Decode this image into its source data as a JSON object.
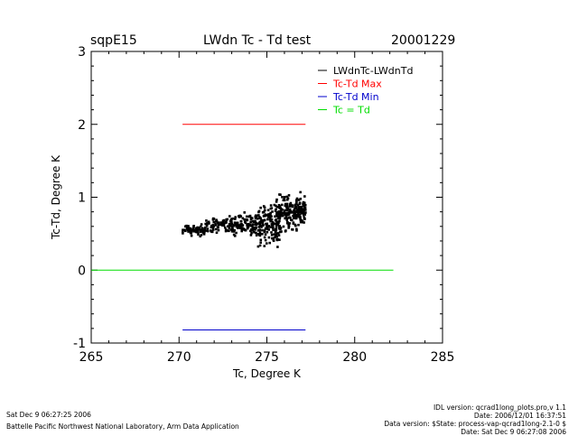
{
  "header": {
    "site": "sqpE15",
    "title": "LWdn Tc - Td test",
    "date": "20001229"
  },
  "footer": {
    "left_date": "Sat Dec  9 06:27:25 2006",
    "left_org": "Battelle Pacific Northwest National Laboratory, Arm Data Application",
    "right_lines": [
      "IDL version: qcrad1long_plots.pro,v 1.1",
      "Date: 2006/12/01 16:37:51",
      "Data version: $State: process-vap-qcrad1long-2.1-0 $",
      "Date: Sat Dec  9 06:27:08 2006"
    ]
  },
  "chart_data": {
    "type": "scatter",
    "xlabel": "Tc, Degree K",
    "ylabel": "Tc-Td, Degree K",
    "xlim": [
      265,
      285
    ],
    "ylim": [
      -1,
      3
    ],
    "x_ticks": [
      265,
      270,
      275,
      280,
      285
    ],
    "y_ticks": [
      -1,
      0,
      1,
      2,
      3
    ],
    "legend_position": "top-right",
    "series": [
      {
        "name": "LWdnTc-LWdnTd",
        "color": "#000000",
        "kind": "scatter",
        "clusters": [
          {
            "x": [
              270.2,
              271.5
            ],
            "y": [
              0.45,
              0.65
            ],
            "n": 70
          },
          {
            "x": [
              271.5,
              273.0
            ],
            "y": [
              0.5,
              0.75
            ],
            "n": 80
          },
          {
            "x": [
              273.0,
              274.5
            ],
            "y": [
              0.45,
              0.8
            ],
            "n": 110
          },
          {
            "x": [
              274.5,
              275.8
            ],
            "y": [
              0.3,
              0.95
            ],
            "n": 150
          },
          {
            "x": [
              275.5,
              277.2
            ],
            "y": [
              0.5,
              1.1
            ],
            "n": 150
          },
          {
            "x": [
              276.0,
              277.2
            ],
            "y": [
              0.65,
              0.95
            ],
            "n": 60
          }
        ]
      },
      {
        "name": "Tc-Td Max",
        "color": "#ff0000",
        "kind": "line",
        "x": [
          270.2,
          277.2
        ],
        "y": [
          2.0,
          2.0
        ]
      },
      {
        "name": "Tc-Td Min",
        "color": "#0000cc",
        "kind": "line",
        "x": [
          270.2,
          277.2
        ],
        "y": [
          -0.82,
          -0.82
        ]
      },
      {
        "name": "Tc = Td",
        "color": "#00dd00",
        "kind": "line",
        "x": [
          265.0,
          282.2
        ],
        "y": [
          0.0,
          0.0
        ]
      }
    ]
  }
}
